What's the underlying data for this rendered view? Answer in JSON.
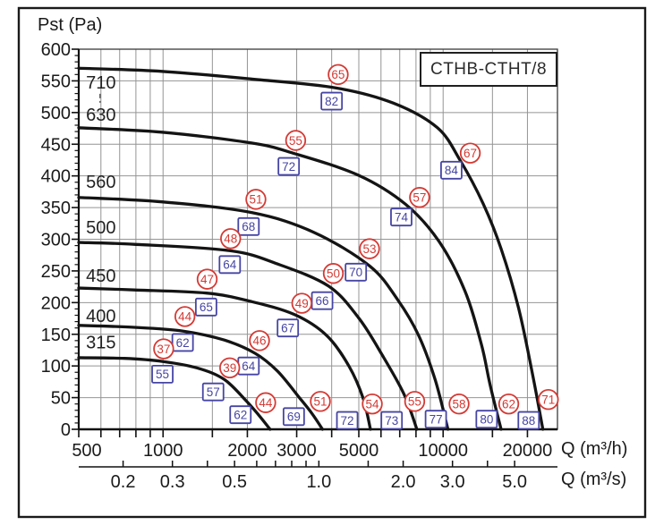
{
  "chart_data": {
    "type": "line",
    "title": "CTHB-CTHT/8",
    "ylabel": "Pst (Pa)",
    "xlabel_primary": "Q (m³/h)",
    "xlabel_secondary": "Q (m³/s)",
    "x_scale": "log",
    "grid": true,
    "legend_position": "none",
    "marker_colors": {
      "circle": "#d43a34",
      "square": "#4645a4"
    },
    "curve_color": "#141414",
    "grid_color": "#949494",
    "x_axis_primary": {
      "unit": "m³/h",
      "range": [
        500,
        25600
      ],
      "gridlines": [
        500,
        600,
        700,
        800,
        900,
        1000,
        1500,
        2000,
        3000,
        4000,
        5000,
        6000,
        7000,
        8000,
        9000,
        10000,
        15000,
        20000
      ],
      "labeled_ticks": [
        {
          "v": 500,
          "label": "500"
        },
        {
          "v": 1000,
          "label": "1000"
        },
        {
          "v": 2000,
          "label": "2000"
        },
        {
          "v": 3000,
          "label": "3000"
        },
        {
          "v": 5000,
          "label": "5000"
        },
        {
          "v": 10000,
          "label": "10000"
        },
        {
          "v": 20000,
          "label": "20000"
        }
      ]
    },
    "x_axis_secondary": {
      "unit": "m³/s",
      "conversion_factor_to_m3h": 3600,
      "ticks": [
        0.2,
        0.3,
        0.4,
        0.5,
        0.6,
        0.7,
        0.8,
        0.9,
        1.0,
        1.5,
        2.0,
        3.0,
        4.0,
        5.0
      ],
      "labeled_ticks": [
        {
          "v": 0.2,
          "label": "0.2"
        },
        {
          "v": 0.3,
          "label": "0.3"
        },
        {
          "v": 0.5,
          "label": "0.5"
        },
        {
          "v": 1.0,
          "label": "1.0"
        },
        {
          "v": 2.0,
          "label": "2.0"
        },
        {
          "v": 3.0,
          "label": "3.0"
        },
        {
          "v": 5.0,
          "label": "5.0"
        }
      ]
    },
    "y_axis": {
      "unit": "Pa",
      "range": [
        0,
        600
      ],
      "gridline_step": 50,
      "minor_tick_step": 10,
      "labeled_ticks": [
        0,
        50,
        100,
        150,
        200,
        250,
        300,
        350,
        400,
        450,
        500,
        550,
        600
      ]
    },
    "series": [
      {
        "name": "315",
        "label_at": {
          "q": 600,
          "p": 138
        },
        "points": [
          [
            500,
            113
          ],
          [
            730,
            112
          ],
          [
            1000,
            107
          ],
          [
            1320,
            97
          ],
          [
            1650,
            79
          ],
          [
            1980,
            45
          ],
          [
            2200,
            22
          ],
          [
            2410,
            0
          ]
        ],
        "circle_labels": [
          {
            "v": 37,
            "q": 1005,
            "p": 127
          },
          {
            "v": 39,
            "q": 1730,
            "p": 97
          },
          {
            "v": 44,
            "q": 2325,
            "p": 42
          }
        ],
        "square_labels": [
          {
            "v": 55,
            "q": 995,
            "p": 87
          },
          {
            "v": 57,
            "q": 1510,
            "p": 59
          },
          {
            "v": 62,
            "q": 1890,
            "p": 23
          }
        ]
      },
      {
        "name": "400",
        "label_at": {
          "q": 600,
          "p": 179
        },
        "points": [
          [
            500,
            164
          ],
          [
            790,
            161
          ],
          [
            1180,
            155
          ],
          [
            1650,
            141
          ],
          [
            2130,
            120
          ],
          [
            2560,
            92
          ],
          [
            3080,
            49
          ],
          [
            3400,
            25
          ],
          [
            3710,
            0
          ]
        ],
        "circle_labels": [
          {
            "v": 44,
            "q": 1197,
            "p": 178
          },
          {
            "v": 46,
            "q": 2210,
            "p": 140
          },
          {
            "v": 51,
            "q": 3645,
            "p": 44
          }
        ],
        "square_labels": [
          {
            "v": 62,
            "q": 1175,
            "p": 137
          },
          {
            "v": 64,
            "q": 2020,
            "p": 100
          },
          {
            "v": 69,
            "q": 2930,
            "p": 20
          }
        ]
      },
      {
        "name": "450",
        "label_at": {
          "q": 600,
          "p": 243
        },
        "points": [
          [
            500,
            223
          ],
          [
            790,
            220
          ],
          [
            1430,
            215
          ],
          [
            2050,
            202
          ],
          [
            2950,
            181
          ],
          [
            3840,
            148
          ],
          [
            4620,
            99
          ],
          [
            5180,
            49
          ],
          [
            5500,
            0
          ]
        ],
        "circle_labels": [
          {
            "v": 47,
            "q": 1437,
            "p": 237
          },
          {
            "v": 49,
            "q": 3130,
            "p": 199
          },
          {
            "v": 54,
            "q": 5585,
            "p": 40
          }
        ],
        "square_labels": [
          {
            "v": 65,
            "q": 1425,
            "p": 193
          },
          {
            "v": 67,
            "q": 2790,
            "p": 160
          },
          {
            "v": 72,
            "q": 4545,
            "p": 14
          }
        ]
      },
      {
        "name": "500",
        "label_at": {
          "q": 600,
          "p": 319
        },
        "points": [
          [
            500,
            295
          ],
          [
            790,
            292
          ],
          [
            1730,
            282
          ],
          [
            2560,
            261
          ],
          [
            3900,
            226
          ],
          [
            4990,
            176
          ],
          [
            6010,
            120
          ],
          [
            7240,
            56
          ],
          [
            8060,
            0
          ]
        ],
        "circle_labels": [
          {
            "v": 48,
            "q": 1743,
            "p": 301
          },
          {
            "v": 50,
            "q": 4055,
            "p": 246
          },
          {
            "v": 55,
            "q": 7915,
            "p": 44
          }
        ],
        "square_labels": [
          {
            "v": 64,
            "q": 1731,
            "p": 260
          },
          {
            "v": 66,
            "q": 3700,
            "p": 203
          },
          {
            "v": 73,
            "q": 6550,
            "p": 14
          }
        ]
      },
      {
        "name": "560",
        "label_at": {
          "q": 600,
          "p": 391
        },
        "points": [
          [
            500,
            366
          ],
          [
            990,
            359
          ],
          [
            2080,
            342
          ],
          [
            3450,
            311
          ],
          [
            5460,
            258
          ],
          [
            6870,
            205
          ],
          [
            8180,
            148
          ],
          [
            9370,
            78
          ],
          [
            10400,
            0
          ]
        ],
        "circle_labels": [
          {
            "v": 51,
            "q": 2145,
            "p": 363
          },
          {
            "v": 53,
            "q": 5460,
            "p": 285
          },
          {
            "v": 58,
            "q": 11400,
            "p": 40
          }
        ],
        "square_labels": [
          {
            "v": 68,
            "q": 2020,
            "p": 320
          },
          {
            "v": 70,
            "q": 4880,
            "p": 248
          },
          {
            "v": 77,
            "q": 9420,
            "p": 16
          }
        ]
      },
      {
        "name": "630",
        "label_at": {
          "q": 600,
          "p": 497
        },
        "points": [
          [
            500,
            476
          ],
          [
            990,
            469
          ],
          [
            2060,
            452
          ],
          [
            2910,
            436
          ],
          [
            4990,
            401
          ],
          [
            7350,
            355
          ],
          [
            9650,
            297
          ],
          [
            11950,
            219
          ],
          [
            13700,
            134
          ],
          [
            14700,
            71
          ],
          [
            16100,
            0
          ]
        ],
        "circle_labels": [
          {
            "v": 55,
            "q": 2975,
            "p": 456
          },
          {
            "v": 57,
            "q": 8240,
            "p": 366
          },
          {
            "v": 62,
            "q": 17150,
            "p": 40
          }
        ],
        "square_labels": [
          {
            "v": 72,
            "q": 2810,
            "p": 415
          },
          {
            "v": 74,
            "q": 7090,
            "p": 335
          },
          {
            "v": 80,
            "q": 14300,
            "p": 16
          }
        ]
      },
      {
        "name": "710",
        "label_at": {
          "q": 600,
          "p": 548
        },
        "leader_dash": true,
        "points": [
          [
            500,
            570
          ],
          [
            990,
            565
          ],
          [
            2060,
            553
          ],
          [
            4130,
            539
          ],
          [
            6630,
            515
          ],
          [
            9540,
            476
          ],
          [
            11520,
            424
          ],
          [
            13900,
            356
          ],
          [
            16100,
            285
          ],
          [
            18600,
            191
          ],
          [
            20900,
            85
          ],
          [
            22700,
            0
          ]
        ],
        "circle_labels": [
          {
            "v": 65,
            "q": 4220,
            "p": 560
          },
          {
            "v": 67,
            "q": 12500,
            "p": 436
          },
          {
            "v": 71,
            "q": 23750,
            "p": 47
          }
        ],
        "square_labels": [
          {
            "v": 82,
            "q": 4000,
            "p": 518
          },
          {
            "v": 84,
            "q": 10700,
            "p": 409
          },
          {
            "v": 88,
            "q": 20200,
            "p": 14
          }
        ]
      }
    ]
  }
}
